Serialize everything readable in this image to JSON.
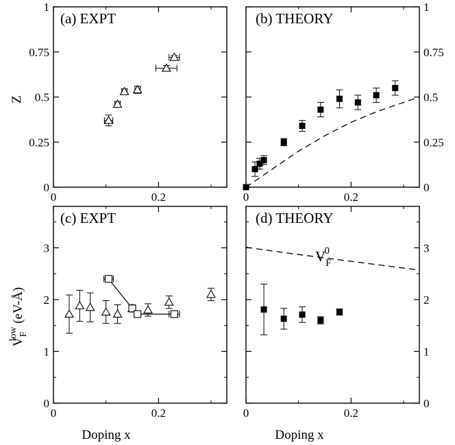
{
  "figure": {
    "xlabel_left": "Doping x",
    "xlabel_right": "Doping x",
    "ylabel_top": "Z",
    "ylabel_bottom": {
      "main": "V",
      "sub": "F",
      "sup": "low",
      "units": " (eV-Å)"
    }
  },
  "chart_data": [
    {
      "id": "a",
      "type": "scatter",
      "title": "(a) EXPT",
      "xlim": [
        0,
        0.33
      ],
      "ylim": [
        0,
        1
      ],
      "xticks": [
        0,
        0.2
      ],
      "xtick_labels": [
        "0",
        "0.2"
      ],
      "yticks": [
        0,
        0.25,
        0.5,
        0.75,
        1
      ],
      "ytick_labels": [
        "0",
        "0.25",
        "0.5",
        "0.75",
        "1"
      ],
      "series": [
        {
          "marker": "open-triangle",
          "points": [
            {
              "x": 0.105,
              "y": 0.37,
              "xerr": 0.008,
              "yerr": 0.03
            },
            {
              "x": 0.122,
              "y": 0.46,
              "xerr": 0.005,
              "yerr": 0.015
            },
            {
              "x": 0.135,
              "y": 0.53,
              "xerr": 0.005,
              "yerr": 0.015
            },
            {
              "x": 0.16,
              "y": 0.54,
              "xerr": 0.005,
              "yerr": 0.02
            },
            {
              "x": 0.215,
              "y": 0.66,
              "xerr": 0.02,
              "yerr": 0.015
            },
            {
              "x": 0.23,
              "y": 0.72,
              "xerr": 0.01,
              "yerr": 0.01
            }
          ]
        }
      ]
    },
    {
      "id": "b",
      "type": "scatter",
      "title": "(b) THEORY",
      "xlim": [
        0,
        0.33
      ],
      "ylim": [
        0,
        1
      ],
      "xticks": [
        0,
        0.2
      ],
      "xtick_labels": [
        "0",
        "0.2"
      ],
      "yticks": [
        0,
        0.25,
        0.5,
        0.75,
        1
      ],
      "ytick_labels": [
        "0",
        "0.25",
        "0.5",
        "0.75",
        "1"
      ],
      "series": [
        {
          "marker": "filled-square",
          "points": [
            {
              "x": 0.0,
              "y": 0.0,
              "yerr": 0.0
            },
            {
              "x": 0.017,
              "y": 0.1,
              "yerr": 0.04
            },
            {
              "x": 0.026,
              "y": 0.13,
              "yerr": 0.03
            },
            {
              "x": 0.034,
              "y": 0.15,
              "yerr": 0.025
            },
            {
              "x": 0.072,
              "y": 0.25,
              "yerr": 0.02
            },
            {
              "x": 0.107,
              "y": 0.34,
              "yerr": 0.03
            },
            {
              "x": 0.142,
              "y": 0.43,
              "yerr": 0.04
            },
            {
              "x": 0.178,
              "y": 0.49,
              "yerr": 0.05
            },
            {
              "x": 0.213,
              "y": 0.47,
              "yerr": 0.04
            },
            {
              "x": 0.248,
              "y": 0.51,
              "yerr": 0.04
            },
            {
              "x": 0.284,
              "y": 0.55,
              "yerr": 0.04
            }
          ]
        },
        {
          "line": "dashed",
          "points": [
            {
              "x": 0.0,
              "y": 0.0
            },
            {
              "x": 0.05,
              "y": 0.1
            },
            {
              "x": 0.1,
              "y": 0.2
            },
            {
              "x": 0.15,
              "y": 0.285
            },
            {
              "x": 0.2,
              "y": 0.36
            },
            {
              "x": 0.25,
              "y": 0.42
            },
            {
              "x": 0.3,
              "y": 0.47
            },
            {
              "x": 0.33,
              "y": 0.5
            }
          ]
        }
      ]
    },
    {
      "id": "c",
      "type": "scatter",
      "title": "(c) EXPT",
      "xlim": [
        0,
        0.33
      ],
      "ylim": [
        0,
        3.8
      ],
      "xticks": [
        0,
        0.2
      ],
      "xtick_labels": [
        "0",
        "0.2"
      ],
      "yticks": [
        0,
        1,
        2,
        3
      ],
      "ytick_labels": [
        "0",
        "1",
        "2",
        "3"
      ],
      "series": [
        {
          "marker": "open-triangle",
          "points": [
            {
              "x": 0.03,
              "y": 1.72,
              "yerr": 0.37
            },
            {
              "x": 0.05,
              "y": 1.88,
              "yerr": 0.3
            },
            {
              "x": 0.07,
              "y": 1.85,
              "yerr": 0.28
            },
            {
              "x": 0.1,
              "y": 1.76,
              "yerr": 0.22
            },
            {
              "x": 0.122,
              "y": 1.72,
              "yerr": 0.18
            },
            {
              "x": 0.15,
              "y": 1.83,
              "yerr": 0.07
            },
            {
              "x": 0.18,
              "y": 1.8,
              "yerr": 0.12
            },
            {
              "x": 0.22,
              "y": 1.95,
              "yerr": 0.12
            },
            {
              "x": 0.3,
              "y": 2.1,
              "yerr": 0.12
            }
          ]
        },
        {
          "marker": "open-square",
          "connected": true,
          "points": [
            {
              "x": 0.105,
              "y": 2.4,
              "xerr": 0.009
            },
            {
              "x": 0.15,
              "y": 1.83,
              "xerr": 0.004
            },
            {
              "x": 0.16,
              "y": 1.72,
              "xerr": 0.006
            },
            {
              "x": 0.23,
              "y": 1.72,
              "xerr": 0.01
            }
          ]
        }
      ]
    },
    {
      "id": "d",
      "type": "scatter",
      "title": "(d) THEORY",
      "annotation": {
        "main": "V",
        "sub": "F",
        "sup": "0"
      },
      "xlim": [
        0,
        0.33
      ],
      "ylim": [
        0,
        3.8
      ],
      "xticks": [
        0,
        0.2
      ],
      "xtick_labels": [
        "0",
        "0.2"
      ],
      "yticks": [
        0,
        1,
        2,
        3
      ],
      "ytick_labels": [
        "0",
        "1",
        "2",
        "3"
      ],
      "series": [
        {
          "marker": "filled-square",
          "points": [
            {
              "x": 0.034,
              "y": 1.81,
              "yerr": 0.49
            },
            {
              "x": 0.072,
              "y": 1.63,
              "yerr": 0.2
            },
            {
              "x": 0.107,
              "y": 1.71,
              "yerr": 0.15
            },
            {
              "x": 0.142,
              "y": 1.6,
              "yerr": 0.07
            },
            {
              "x": 0.178,
              "y": 1.76,
              "yerr": 0.06
            }
          ]
        },
        {
          "line": "dashed",
          "points": [
            {
              "x": 0.0,
              "y": 3.01
            },
            {
              "x": 0.1,
              "y": 2.87
            },
            {
              "x": 0.2,
              "y": 2.74
            },
            {
              "x": 0.33,
              "y": 2.57
            }
          ]
        }
      ]
    }
  ]
}
